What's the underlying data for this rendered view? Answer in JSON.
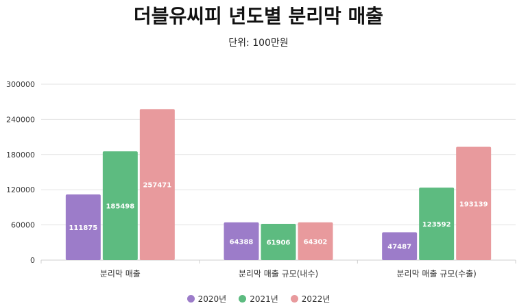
{
  "chart_data": {
    "type": "bar",
    "title": "더블유씨피 년도별 분리막 매출",
    "subtitle": "단위: 100만원",
    "categories": [
      "분리막 매출",
      "분리막 매출 규모(내수)",
      "분리막 매출 규모(수출)"
    ],
    "series": [
      {
        "name": "2020년",
        "color": "#9c7cc9",
        "values": [
          111875,
          64388,
          47487
        ]
      },
      {
        "name": "2021년",
        "color": "#5dbb80",
        "values": [
          185498,
          61906,
          123592
        ]
      },
      {
        "name": "2022년",
        "color": "#e89a9d",
        "values": [
          257471,
          64302,
          193139
        ]
      }
    ],
    "y_ticks": [
      "0",
      "60000",
      "120000",
      "180000",
      "240000",
      "300000"
    ],
    "ylim": [
      0,
      300000
    ],
    "grid": true,
    "legend_position": "bottom"
  }
}
